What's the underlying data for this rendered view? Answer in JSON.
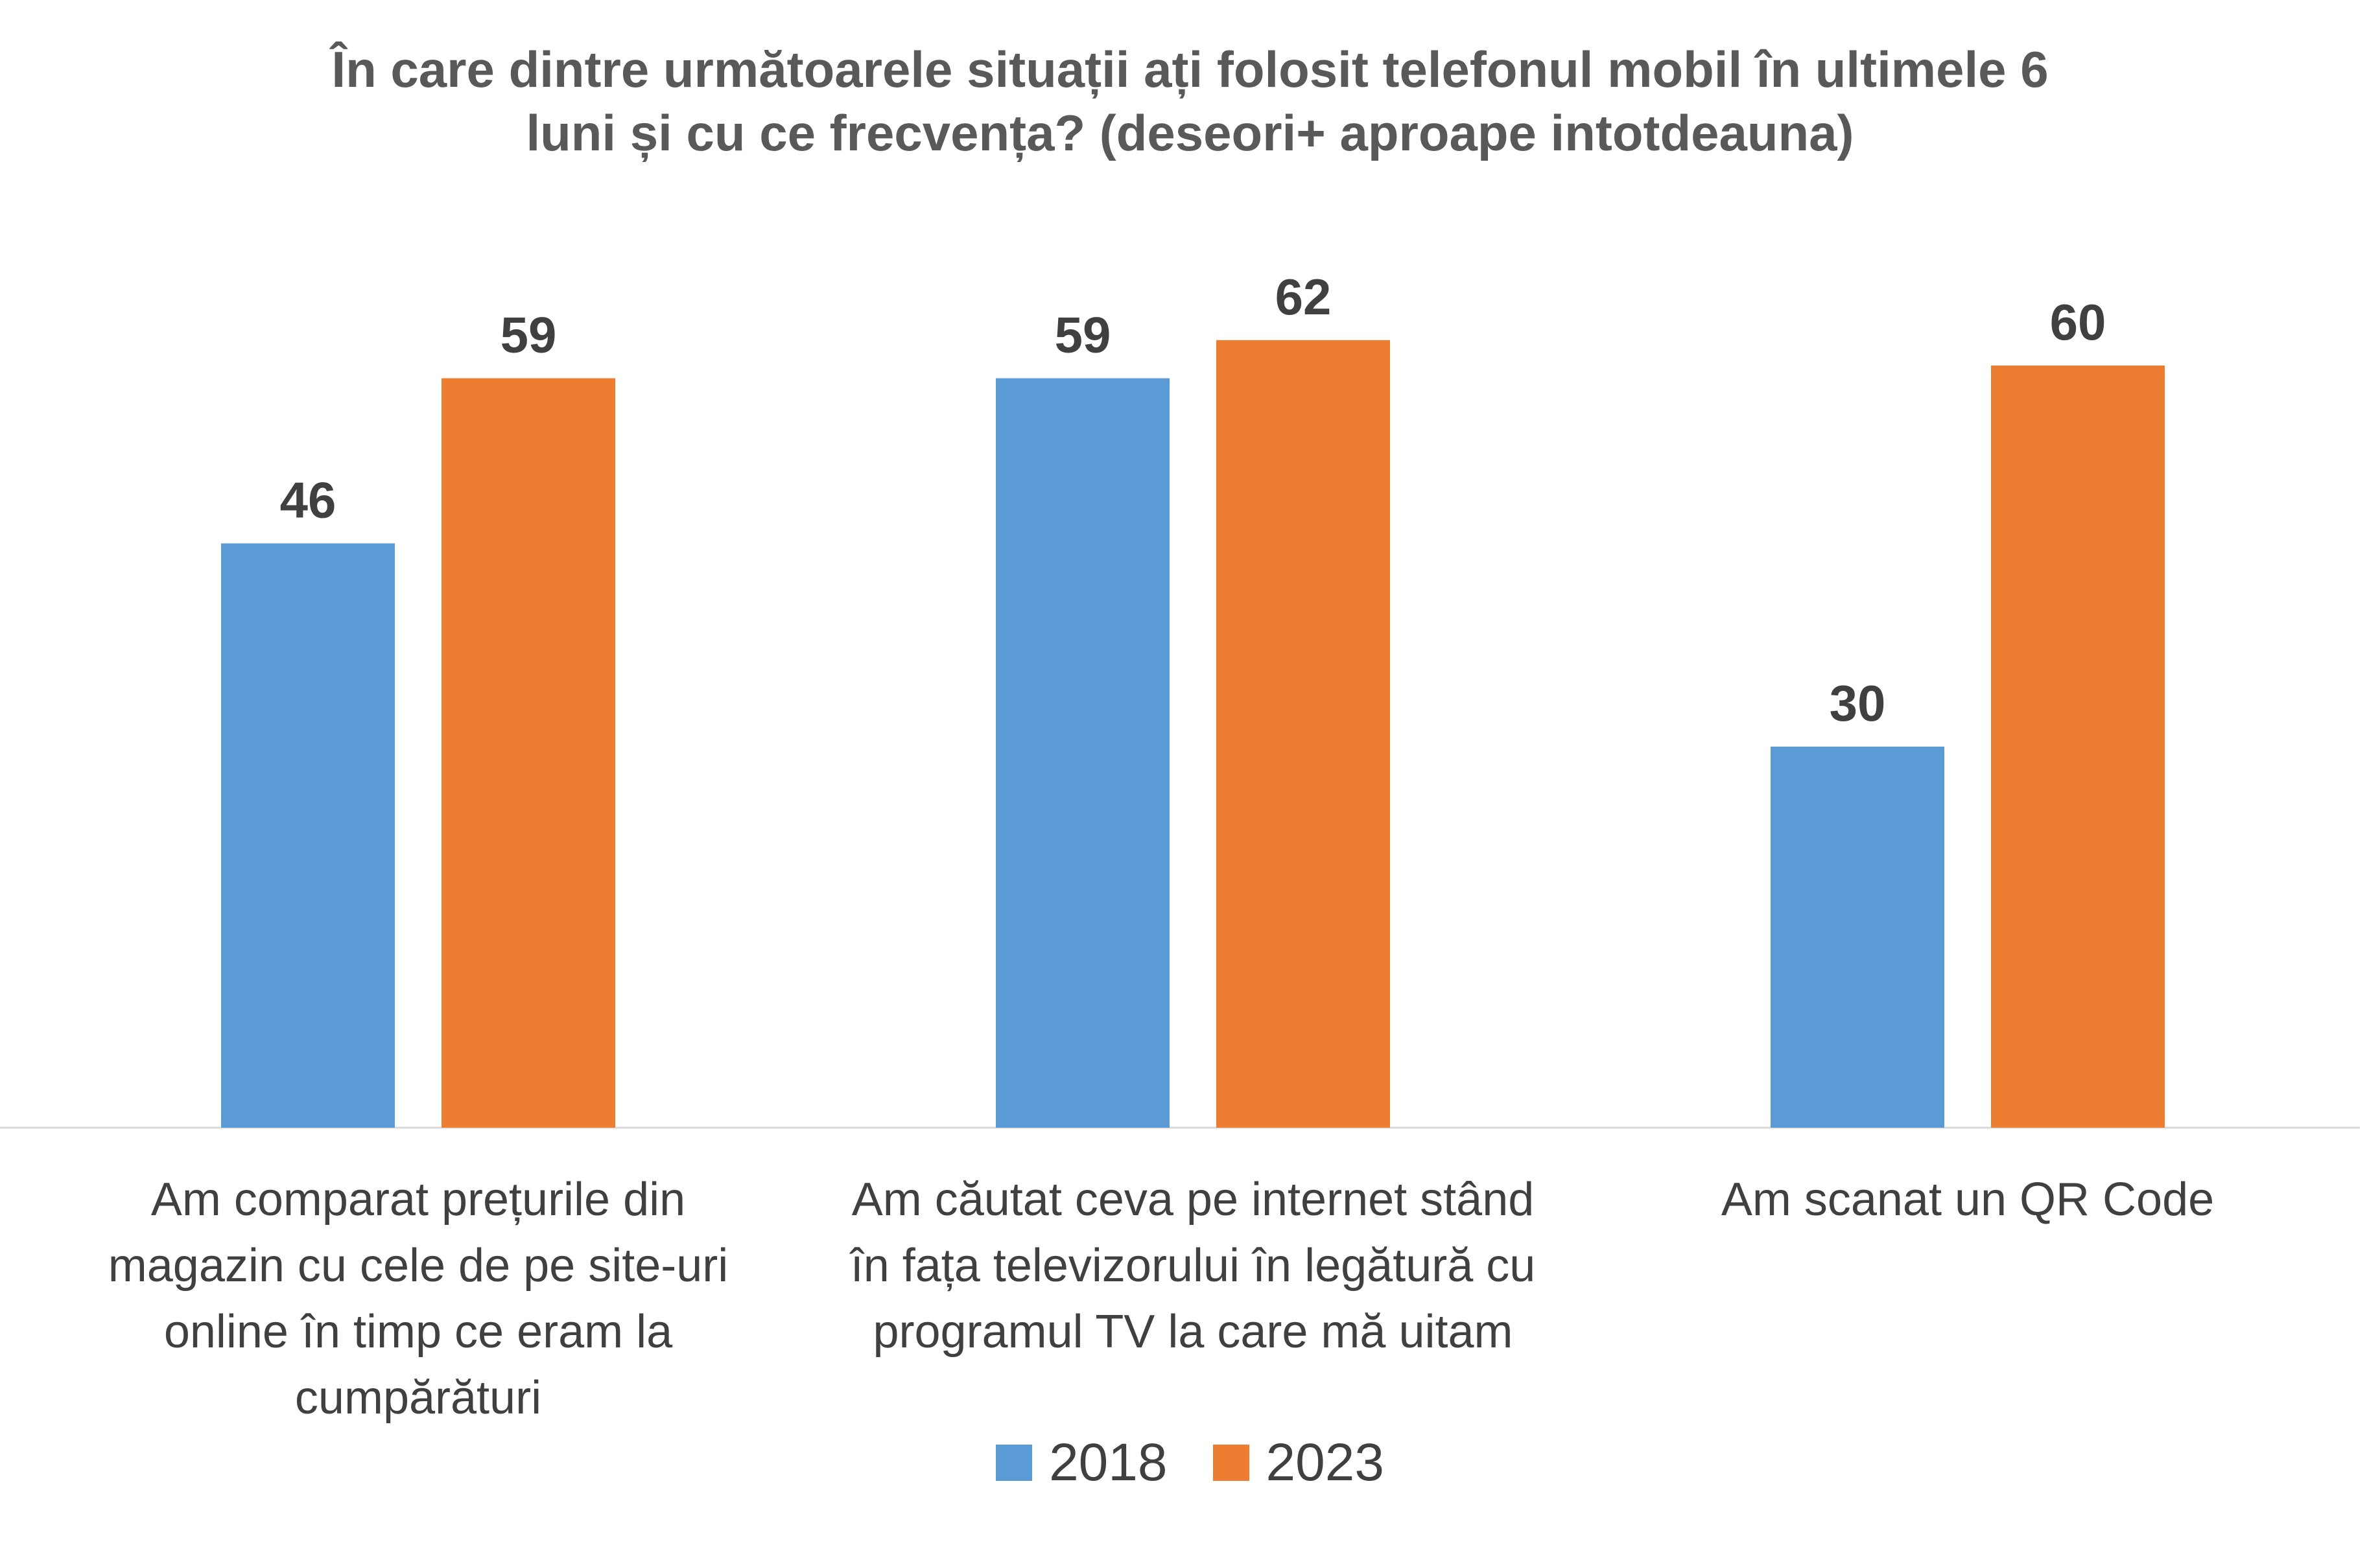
{
  "chart_data": {
    "type": "bar",
    "title_lines": [
      "În care dintre următoarele situații ați folosit telefonul mobil în ultimele 6",
      "luni și cu ce frecvența? (deseori+ aproape intotdeauna)"
    ],
    "categories": [
      [
        "Am comparat prețurile din",
        "magazin cu cele de pe site-uri",
        "online în timp ce eram la",
        "cumpărături"
      ],
      [
        "Am căutat ceva pe internet stând",
        "în fața televizorului în legătură cu",
        "programul TV la care mă uitam"
      ],
      [
        "Am scanat un QR Code"
      ]
    ],
    "series": [
      {
        "name": "2018",
        "color": "#5B9BD5",
        "values": [
          46,
          59,
          30
        ]
      },
      {
        "name": "2023",
        "color": "#ED7D31",
        "values": [
          59,
          62,
          60
        ]
      }
    ],
    "data_labels": [
      [
        "46",
        "59",
        "30"
      ],
      [
        "59",
        "62",
        "60"
      ]
    ],
    "ylim": [
      0,
      68
    ],
    "grid": false,
    "legend_position": "bottom",
    "xlabel": "",
    "ylabel": ""
  }
}
